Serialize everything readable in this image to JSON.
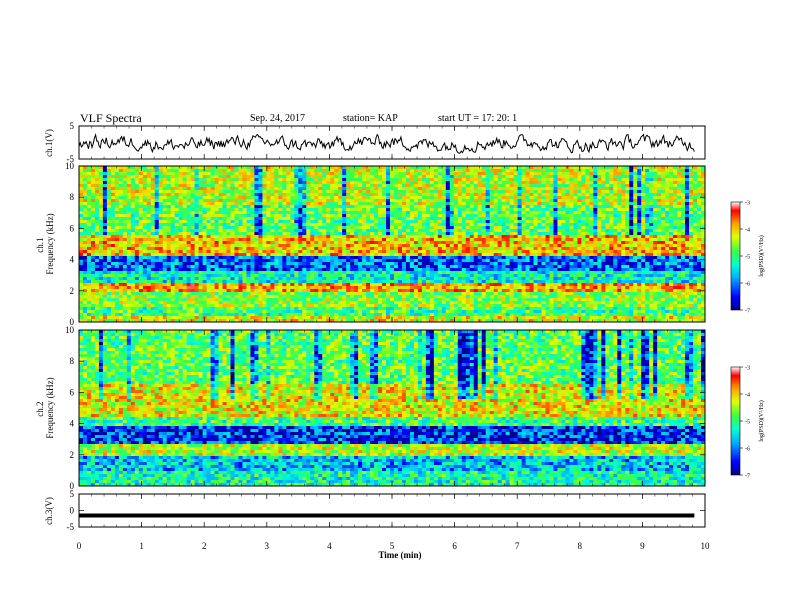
{
  "header": {
    "title": "VLF Spectra",
    "date": "Sep. 24, 2017",
    "station": "station= KAP",
    "start": "start  UT =   17: 20: 1"
  },
  "colors": {
    "waveform": "#000000",
    "colormap": [
      "#000080",
      "#0000ff",
      "#00b0ff",
      "#00ffd0",
      "#40ff40",
      "#e0ff00",
      "#ffa000",
      "#ff0000",
      "#ffffff"
    ]
  },
  "chart_data": [
    {
      "type": "line",
      "panel": "ch1-waveform",
      "ylabel": "ch.1(V)",
      "ylim": [
        -5,
        5
      ],
      "yticks": [
        5,
        -5
      ],
      "x_range_min": [
        0,
        9.83
      ],
      "amplitude_note": "noisy waveform oscillating roughly between -3 and +2 V"
    },
    {
      "type": "heatmap",
      "panel": "ch1-spectrogram",
      "ylabel": "ch.1\nFrequency (kHz)",
      "ylim": [
        0,
        10
      ],
      "yticks": [
        0,
        2,
        4,
        6,
        8,
        10
      ],
      "colorbar": {
        "label": "log(PSD)(V²/Hz)",
        "range": [
          -7,
          -3
        ],
        "ticks": [
          -3,
          -4,
          -5,
          -6,
          -7
        ]
      },
      "bands_khz": [
        {
          "from": 0.0,
          "to": 0.4,
          "level": -4.5
        },
        {
          "from": 0.4,
          "to": 1.0,
          "level": -5.2
        },
        {
          "from": 1.0,
          "to": 2.0,
          "level": -4.8
        },
        {
          "from": 2.0,
          "to": 2.5,
          "level": -4.0
        },
        {
          "from": 2.5,
          "to": 3.2,
          "level": -5.5
        },
        {
          "from": 3.2,
          "to": 4.2,
          "level": -6.2
        },
        {
          "from": 4.2,
          "to": 5.5,
          "level": -4.2
        },
        {
          "from": 5.5,
          "to": 7.5,
          "level": -5.0
        },
        {
          "from": 7.5,
          "to": 10.0,
          "level": -4.6
        }
      ]
    },
    {
      "type": "heatmap",
      "panel": "ch2-spectrogram",
      "ylabel": "ch.2\nFrequency (kHz)",
      "ylim": [
        0,
        10
      ],
      "yticks": [
        0,
        2,
        4,
        6,
        8,
        10
      ],
      "colorbar": {
        "label": "log(PSD)(V²/Hz)",
        "range": [
          -7,
          -3
        ],
        "ticks": [
          -3,
          -4,
          -5,
          -6,
          -7
        ]
      },
      "bands_khz": [
        {
          "from": 0.0,
          "to": 1.0,
          "level": -5.4
        },
        {
          "from": 1.0,
          "to": 2.0,
          "level": -5.8
        },
        {
          "from": 2.0,
          "to": 2.6,
          "level": -4.6
        },
        {
          "from": 2.6,
          "to": 3.8,
          "level": -6.4
        },
        {
          "from": 3.8,
          "to": 4.5,
          "level": -5.2
        },
        {
          "from": 4.5,
          "to": 6.5,
          "level": -4.4
        },
        {
          "from": 6.5,
          "to": 10.0,
          "level": -5.0
        }
      ]
    },
    {
      "type": "line",
      "panel": "ch3-waveform",
      "ylabel": "ch.3(V)",
      "ylim": [
        -5,
        5
      ],
      "yticks": [
        5,
        0,
        -5
      ],
      "constant_value": -1.5
    }
  ],
  "xaxis": {
    "label": "Time (min)",
    "ticks": [
      0,
      1,
      2,
      3,
      4,
      5,
      6,
      7,
      8,
      9,
      10
    ],
    "range": [
      0,
      10
    ]
  }
}
